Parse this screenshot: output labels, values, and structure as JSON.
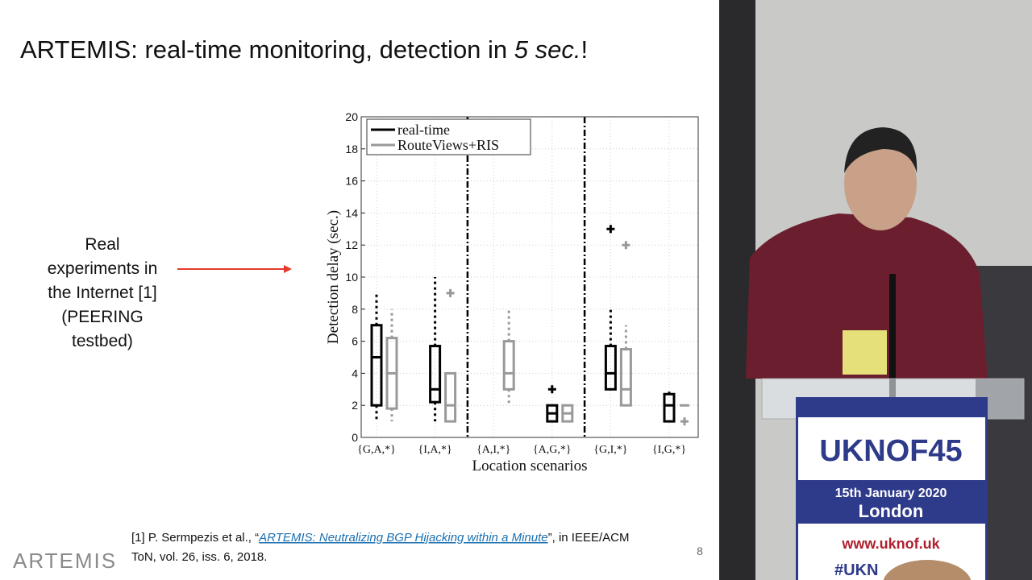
{
  "slide": {
    "title_parts": [
      "ARTEMIS: real-time monitoring, detection in ",
      "5 sec.",
      "!"
    ],
    "side_note": [
      "Real",
      "experiments in",
      "the Internet [1]",
      "(PEERING",
      "testbed)"
    ],
    "reference": {
      "before": "[1] P. Sermpezis et al., “",
      "link": "ARTEMIS: Neutralizing BGP Hijacking within a Minute",
      "after": "”, in IEEE/ACM",
      "line2": "ToN, vol. 26, iss. 6, 2018."
    },
    "page_number": "8",
    "logo": "ARTEMIS"
  },
  "chart_data": {
    "type": "box",
    "xlabel": "Location scenarios",
    "ylabel": "Detection delay (sec.)",
    "categories": [
      "{G,A,*}",
      "{I,A,*}",
      "{A,I,*}",
      "{A,G,*}",
      "{G,I,*}",
      "{I,G,*}"
    ],
    "ylim": [
      0,
      20
    ],
    "yticks": [
      0,
      2,
      4,
      6,
      8,
      10,
      12,
      14,
      16,
      18,
      20
    ],
    "grid": true,
    "legend": "upper left",
    "series": [
      {
        "name": "real-time",
        "color": "#000000",
        "low": [
          1,
          1,
          null,
          1,
          3,
          1
        ],
        "q1": [
          2,
          2.2,
          null,
          1,
          3,
          1
        ],
        "median": [
          5,
          3,
          null,
          1.5,
          4,
          2
        ],
        "q3": [
          7,
          5.7,
          null,
          2,
          5.7,
          2.7
        ],
        "high": [
          9,
          10,
          null,
          2,
          8,
          3
        ],
        "outliers": [
          [],
          [],
          [],
          [
            3
          ],
          [
            13
          ],
          []
        ]
      },
      {
        "name": "RouteViews+RIS",
        "color": "#999999",
        "low": [
          1,
          1,
          2,
          1,
          2,
          2
        ],
        "q1": [
          1.8,
          1,
          3,
          1,
          2,
          2
        ],
        "median": [
          4,
          2,
          4,
          1.5,
          3,
          2
        ],
        "q3": [
          6.2,
          4,
          6,
          2,
          5.5,
          2
        ],
        "high": [
          8,
          4,
          8,
          2,
          7,
          2
        ],
        "outliers": [
          [],
          [
            9
          ],
          [],
          [],
          [
            12
          ],
          [
            1
          ]
        ]
      }
    ]
  },
  "podium": {
    "event": "UKNOF45",
    "date": "15th January 2020",
    "city": "London",
    "url": "www.uknof.uk",
    "hashtag": "#UKN"
  }
}
